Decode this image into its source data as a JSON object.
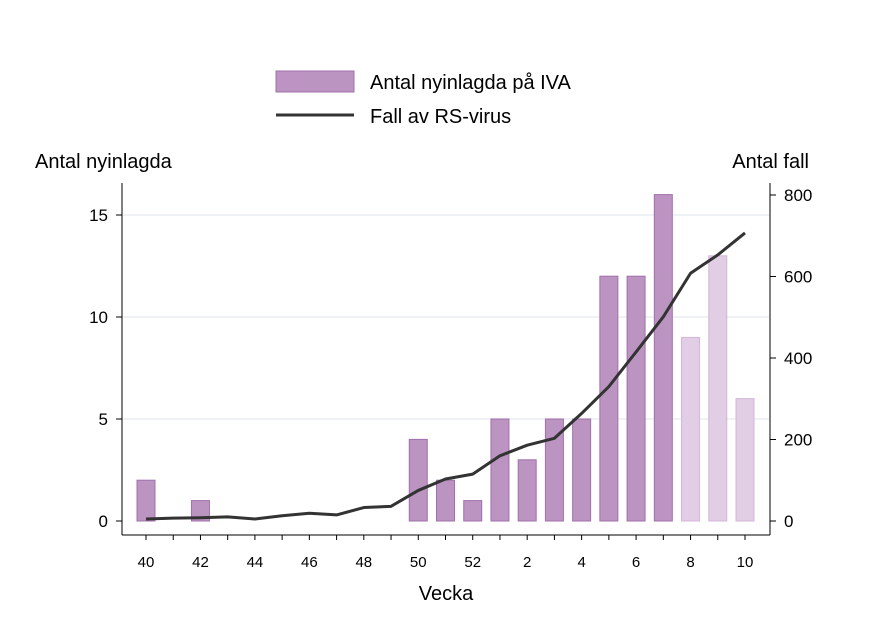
{
  "chart_data": {
    "type": "bar+line",
    "xlabel": "Vecka",
    "ylabel_left": "Antal nyinlagda",
    "ylabel_right": "Antal fall",
    "legend_position": "top-center",
    "grid": true,
    "categories": [
      "40",
      "41",
      "42",
      "43",
      "44",
      "45",
      "46",
      "47",
      "48",
      "49",
      "50",
      "51",
      "52",
      "1",
      "2",
      "3",
      "4",
      "5",
      "6",
      "7",
      "8",
      "9",
      "10"
    ],
    "x_tick_labels": [
      "40",
      "42",
      "44",
      "46",
      "48",
      "50",
      "52",
      "2",
      "4",
      "6",
      "8",
      "10"
    ],
    "ylim_left": [
      0,
      16
    ],
    "yticks_left": [
      "0",
      "5",
      "10",
      "15"
    ],
    "ylim_right": [
      0,
      800
    ],
    "yticks_right": [
      "0",
      "200",
      "400",
      "600",
      "800"
    ],
    "series": [
      {
        "name": "Antal nyinlagda på IVA",
        "type": "bar",
        "axis": "left",
        "color": "#bc94c2",
        "light_color": "#e1cde4",
        "values": [
          2,
          0,
          1,
          0,
          0,
          0,
          0,
          0,
          0,
          0,
          4,
          2,
          1,
          5,
          3,
          5,
          5,
          12,
          12,
          16,
          9,
          13,
          6
        ],
        "preliminary": [
          false,
          false,
          false,
          false,
          false,
          false,
          false,
          false,
          false,
          false,
          false,
          false,
          false,
          false,
          false,
          false,
          false,
          false,
          false,
          false,
          true,
          true,
          true
        ]
      },
      {
        "name": "Fall av RS-virus",
        "type": "line",
        "axis": "right",
        "color": "#333333",
        "values": [
          5,
          7,
          8,
          10,
          5,
          13,
          19,
          15,
          33,
          36,
          75,
          103,
          115,
          160,
          186,
          203,
          264,
          330,
          415,
          501,
          608,
          653,
          707
        ]
      }
    ]
  }
}
